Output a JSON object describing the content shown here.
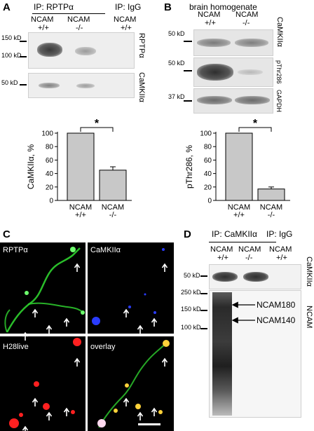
{
  "panels": {
    "A": {
      "letter": "A",
      "ip_rptp": "IP: RPTPα",
      "ip_igg": "IP: IgG",
      "lanes": [
        {
          "name": "NCAM",
          "genotype": "+/+"
        },
        {
          "name": "NCAM",
          "genotype": "-/-"
        },
        {
          "name": "NCAM",
          "genotype": "+/+"
        }
      ],
      "markers": {
        "m150": "150 kD",
        "m100": "100 kD",
        "m50": "50 kD"
      },
      "blot_labels": {
        "rptp": "RPTPα",
        "camk": "CaMKIIα"
      },
      "significance": "*",
      "chart_data": {
        "type": "bar",
        "categories": [
          "NCAM +/+",
          "NCAM -/-"
        ],
        "values": [
          100,
          45
        ],
        "errors": [
          0,
          5
        ],
        "ylabel": "CaMKIIα, %",
        "yticks": [
          "0",
          "20",
          "40",
          "60",
          "80",
          "100"
        ],
        "ylim": [
          0,
          100
        ],
        "xcat1": [
          "NCAM",
          "+/+"
        ],
        "xcat2": [
          "NCAM",
          "-/-"
        ]
      }
    },
    "B": {
      "letter": "B",
      "title": "brain homogenate",
      "lanes": [
        {
          "name": "NCAM",
          "genotype": "+/+"
        },
        {
          "name": "NCAM",
          "genotype": "-/-"
        }
      ],
      "markers": {
        "m50a": "50 kD",
        "m50b": "50 kD",
        "m37": "37 kD"
      },
      "blot_labels": {
        "camk": "CaMKIIα",
        "pthr": "pThr286",
        "gapdh": "GAPDH"
      },
      "significance": "*",
      "chart_data": {
        "type": "bar",
        "categories": [
          "NCAM +/+",
          "NCAM -/-"
        ],
        "values": [
          100,
          17
        ],
        "errors": [
          0,
          3
        ],
        "ylabel": "pThr286, %",
        "yticks": [
          "0",
          "20",
          "40",
          "60",
          "80",
          "100"
        ],
        "ylim": [
          0,
          100
        ],
        "xcat1": [
          "NCAM",
          "+/+"
        ],
        "xcat2": [
          "NCAM",
          "-/-"
        ]
      }
    },
    "C": {
      "letter": "C",
      "labels": {
        "tl": "RPTPα",
        "tr": "CaMKIIα",
        "bl": "H28live",
        "br": "overlay"
      },
      "colors": {
        "green": "#2fd12f",
        "blue": "#2a3cff",
        "red": "#ff2020",
        "yellow": "#ffd23a"
      }
    },
    "D": {
      "letter": "D",
      "ip_camk": "IP: CaMKIIα",
      "ip_igg": "IP: IgG",
      "lanes": [
        {
          "name": "NCAM",
          "genotype": "+/+"
        },
        {
          "name": "NCAM",
          "genotype": "-/-"
        },
        {
          "name": "NCAM",
          "genotype": "+/+"
        }
      ],
      "markers": {
        "m50": "50 kD",
        "m250": "250 kD",
        "m150": "150 kD",
        "m100": "100 kD"
      },
      "blot_labels": {
        "camk": "CaMKIIα",
        "ncam": "NCAM"
      },
      "arrows": {
        "a180": "NCAM180",
        "a140": "NCAM140"
      }
    }
  }
}
